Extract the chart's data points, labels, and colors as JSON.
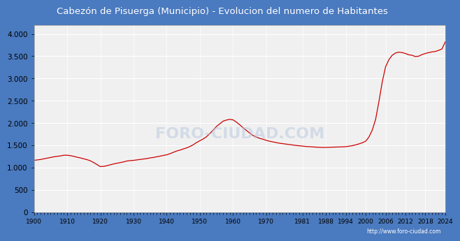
{
  "title": "Cabezón de Pisuerga (Municipio) - Evolucion del numero de Habitantes",
  "title_color": "white",
  "title_bg": "#4a7abf",
  "line_color": "#cc0000",
  "plot_bg": "#f0f0f0",
  "watermark": "http://www.foro-ciudad.com",
  "watermark_logo": "FORO-CIUDAD.COM",
  "ylim": [
    0,
    4200
  ],
  "yticks": [
    0,
    500,
    1000,
    1500,
    2000,
    2500,
    3000,
    3500,
    4000
  ],
  "xtick_labels": [
    "1900",
    "1910",
    "1920",
    "1930",
    "1940",
    "1950",
    "1960",
    "1970",
    "1981",
    "1988",
    "1994",
    "2000",
    "2006",
    "2012",
    "2018",
    "2024"
  ],
  "years": [
    1900,
    1901,
    1902,
    1903,
    1904,
    1905,
    1906,
    1907,
    1908,
    1909,
    1910,
    1911,
    1912,
    1913,
    1914,
    1915,
    1916,
    1917,
    1918,
    1919,
    1920,
    1921,
    1922,
    1923,
    1924,
    1925,
    1926,
    1927,
    1928,
    1929,
    1930,
    1931,
    1932,
    1933,
    1934,
    1935,
    1936,
    1937,
    1938,
    1939,
    1940,
    1941,
    1942,
    1943,
    1944,
    1945,
    1946,
    1947,
    1948,
    1949,
    1950,
    1951,
    1952,
    1953,
    1954,
    1955,
    1956,
    1957,
    1958,
    1959,
    1960,
    1961,
    1962,
    1963,
    1964,
    1965,
    1966,
    1967,
    1968,
    1969,
    1970,
    1971,
    1972,
    1973,
    1974,
    1975,
    1976,
    1977,
    1978,
    1979,
    1981,
    1982,
    1983,
    1984,
    1985,
    1986,
    1987,
    1988,
    1989,
    1990,
    1991,
    1992,
    1993,
    1994,
    1995,
    1996,
    1997,
    1998,
    1999,
    2000,
    2001,
    2002,
    2003,
    2004,
    2005,
    2006,
    2007,
    2008,
    2009,
    2010,
    2011,
    2012,
    2013,
    2014,
    2015,
    2016,
    2017,
    2018,
    2019,
    2020,
    2021,
    2022,
    2023,
    2024
  ],
  "population": [
    1160,
    1170,
    1180,
    1195,
    1210,
    1225,
    1240,
    1250,
    1260,
    1275,
    1275,
    1265,
    1250,
    1230,
    1215,
    1195,
    1175,
    1150,
    1110,
    1065,
    1020,
    1025,
    1040,
    1060,
    1080,
    1095,
    1110,
    1125,
    1145,
    1155,
    1160,
    1170,
    1180,
    1190,
    1200,
    1215,
    1225,
    1240,
    1255,
    1270,
    1285,
    1310,
    1340,
    1370,
    1390,
    1415,
    1440,
    1470,
    1510,
    1560,
    1600,
    1640,
    1690,
    1760,
    1840,
    1920,
    1980,
    2040,
    2065,
    2080,
    2070,
    2020,
    1960,
    1895,
    1835,
    1775,
    1720,
    1685,
    1655,
    1635,
    1610,
    1590,
    1575,
    1560,
    1545,
    1535,
    1525,
    1515,
    1505,
    1495,
    1480,
    1472,
    1468,
    1462,
    1457,
    1453,
    1450,
    1450,
    1453,
    1456,
    1459,
    1461,
    1463,
    1468,
    1478,
    1490,
    1508,
    1530,
    1555,
    1590,
    1685,
    1840,
    2080,
    2480,
    2920,
    3260,
    3420,
    3520,
    3570,
    3590,
    3580,
    3560,
    3530,
    3520,
    3490,
    3500,
    3535,
    3560,
    3580,
    3595,
    3605,
    3630,
    3660,
    3820
  ]
}
